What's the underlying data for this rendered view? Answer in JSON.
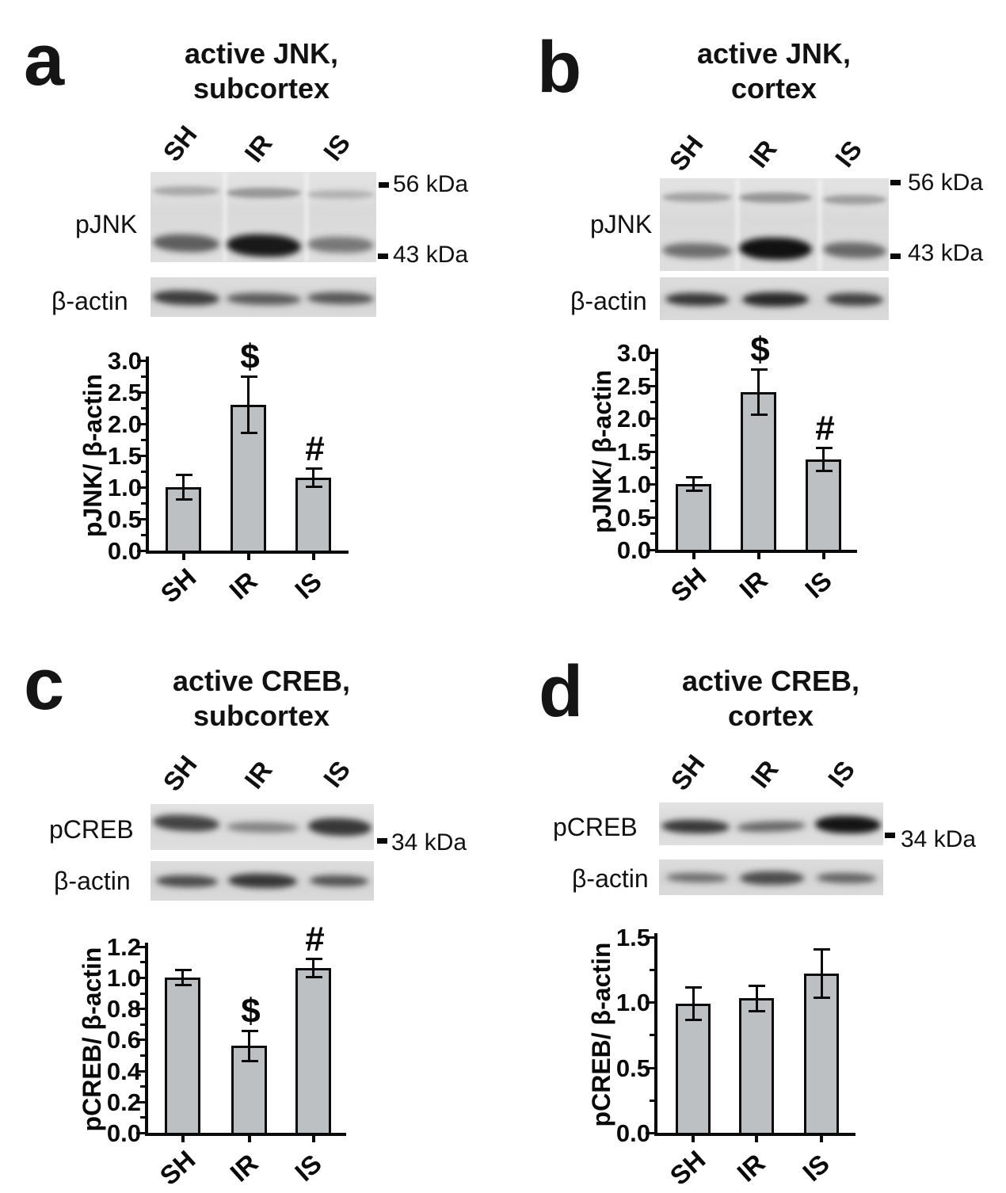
{
  "figure": {
    "panels": [
      {
        "letter": "a",
        "title_line1": "active JNK,",
        "title_line2": "subcortex",
        "lanes": [
          "SH",
          "IR",
          "IS"
        ],
        "blots": [
          {
            "label": "pJNK",
            "band_rows": [
              [
                0.25,
                0.33,
                0.2
              ],
              [
                0.6,
                0.93,
                0.48
              ]
            ]
          },
          {
            "label": "β-actin",
            "band_rows": [
              [
                0.75,
                0.6,
                0.62
              ]
            ]
          }
        ],
        "markers": [
          "56 kDa",
          "43 kDa"
        ]
      },
      {
        "letter": "b",
        "title_line1": "active JNK,",
        "title_line2": "cortex",
        "lanes": [
          "SH",
          "IR",
          "IS"
        ],
        "blots": [
          {
            "label": "pJNK",
            "band_rows": [
              [
                0.28,
                0.34,
                0.3
              ],
              [
                0.52,
                0.97,
                0.55
              ]
            ]
          },
          {
            "label": "β-actin",
            "band_rows": [
              [
                0.78,
                0.85,
                0.72
              ]
            ]
          }
        ],
        "markers": [
          "56 kDa",
          "43 kDa"
        ]
      },
      {
        "letter": "c",
        "title_line1": "active CREB,",
        "title_line2": "subcortex",
        "lanes": [
          "SH",
          "IR",
          "IS"
        ],
        "blots": [
          {
            "label": "pCREB",
            "band_rows": [
              [
                0.72,
                0.42,
                0.78
              ]
            ]
          },
          {
            "label": "β-actin",
            "band_rows": [
              [
                0.68,
                0.78,
                0.64
              ]
            ]
          }
        ],
        "markers": [
          "34 kDa"
        ]
      },
      {
        "letter": "d",
        "title_line1": "active CREB,",
        "title_line2": "cortex",
        "lanes": [
          "SH",
          "IR",
          "IS"
        ],
        "blots": [
          {
            "label": "pCREB",
            "band_rows": [
              [
                0.78,
                0.55,
                0.95
              ]
            ]
          },
          {
            "label": "β-actin",
            "band_rows": [
              [
                0.5,
                0.68,
                0.55
              ]
            ]
          }
        ],
        "markers": [
          "34 kDa"
        ]
      }
    ]
  },
  "chart_data": [
    {
      "type": "bar",
      "title": "active JNK, subcortex",
      "categories": [
        "SH",
        "IR",
        "IS"
      ],
      "values": [
        1.0,
        2.3,
        1.15
      ],
      "errors": [
        0.2,
        0.45,
        0.15
      ],
      "annotations": [
        "",
        "$",
        "#"
      ],
      "xlabel": "",
      "ylabel": "pJNK/ β-actin",
      "ylim": [
        0,
        3.0
      ],
      "yticks": [
        0.0,
        0.5,
        1.0,
        1.5,
        2.0,
        2.5,
        3.0
      ],
      "grid": false,
      "legend": false
    },
    {
      "type": "bar",
      "title": "active JNK, cortex",
      "categories": [
        "SH",
        "IR",
        "IS"
      ],
      "values": [
        1.0,
        2.4,
        1.37
      ],
      "errors": [
        0.11,
        0.35,
        0.18
      ],
      "annotations": [
        "",
        "$",
        "#"
      ],
      "xlabel": "",
      "ylabel": "pJNK/ β-actin",
      "ylim": [
        0,
        3.0
      ],
      "yticks": [
        0.0,
        0.5,
        1.0,
        1.5,
        2.0,
        2.5,
        3.0
      ],
      "grid": false,
      "legend": false
    },
    {
      "type": "bar",
      "title": "active CREB, subcortex",
      "categories": [
        "SH",
        "IR",
        "IS"
      ],
      "values": [
        1.0,
        0.56,
        1.06
      ],
      "errors": [
        0.05,
        0.1,
        0.06
      ],
      "annotations": [
        "",
        "$",
        "#"
      ],
      "xlabel": "",
      "ylabel": "pCREB/ β-actin",
      "ylim": [
        0,
        1.2
      ],
      "yticks": [
        0.0,
        0.2,
        0.4,
        0.6,
        0.8,
        1.0,
        1.2
      ],
      "grid": false,
      "legend": false
    },
    {
      "type": "bar",
      "title": "active CREB, cortex",
      "categories": [
        "SH",
        "IR",
        "IS"
      ],
      "values": [
        0.99,
        1.03,
        1.22
      ],
      "errors": [
        0.13,
        0.1,
        0.19
      ],
      "annotations": [
        "",
        "",
        ""
      ],
      "xlabel": "",
      "ylabel": "pCREB/ β-actin",
      "ylim": [
        0,
        1.5
      ],
      "yticks": [
        0.0,
        0.5,
        1.0,
        1.5
      ],
      "grid": false,
      "legend": false
    }
  ]
}
